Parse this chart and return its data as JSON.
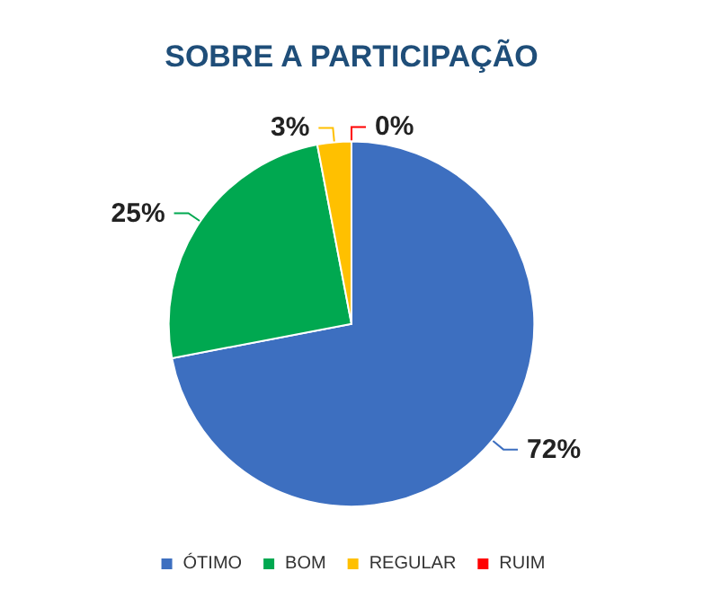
{
  "chart_data": {
    "type": "pie",
    "title": "SOBRE A PARTICIPAÇÃO",
    "categories": [
      "ÓTIMO",
      "BOM",
      "REGULAR",
      "RUIM"
    ],
    "values": [
      72,
      25,
      3,
      0
    ],
    "value_labels": [
      "72%",
      "25%",
      "3%",
      "0%"
    ],
    "colors": [
      "#3d6fc0",
      "#00a850",
      "#ffc000",
      "#ff0000"
    ],
    "legend": "bottom"
  }
}
